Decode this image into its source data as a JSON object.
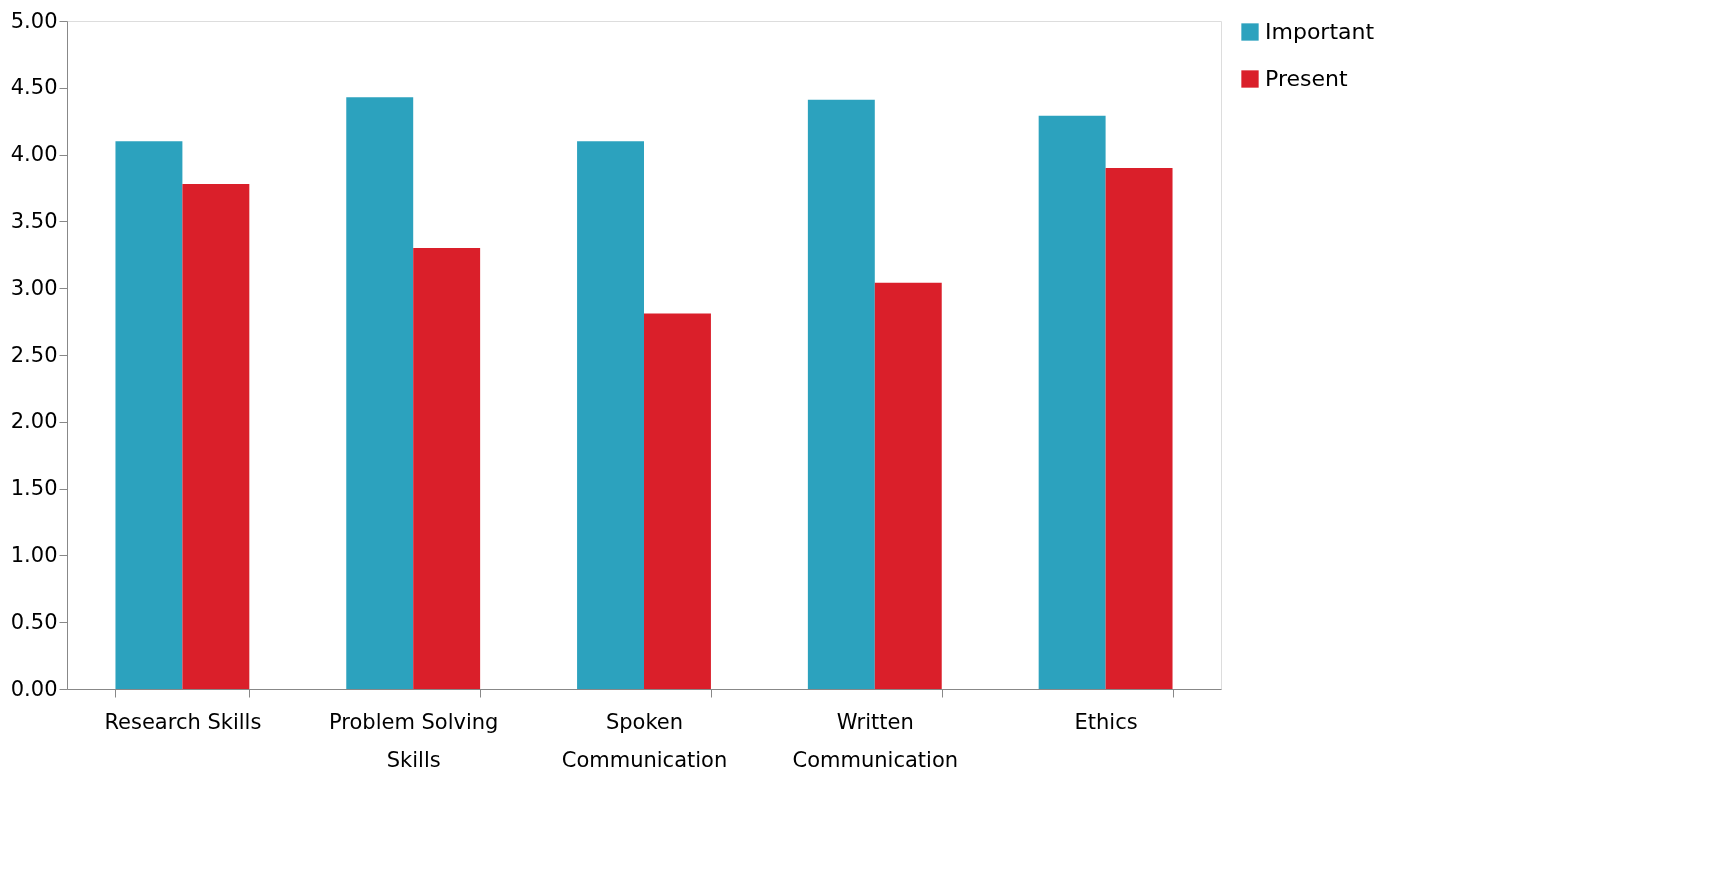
{
  "chart_data": {
    "type": "bar",
    "categories": [
      "Research Skills",
      "Problem Solving Skills",
      "Spoken Communication",
      "Written Communication",
      "Ethics"
    ],
    "series": [
      {
        "name": "Important",
        "color": "#2ca2be",
        "values": [
          4.1,
          4.43,
          4.1,
          4.41,
          4.29
        ]
      },
      {
        "name": "Present",
        "color": "#da1f2a",
        "values": [
          3.78,
          3.3,
          2.81,
          3.04,
          3.9
        ]
      }
    ],
    "ylim": [
      0,
      5
    ],
    "yticks": [
      {
        "value": 0,
        "label": "0.00"
      },
      {
        "value": 0.5,
        "label": "0.50"
      },
      {
        "value": 1,
        "label": "1.00"
      },
      {
        "value": 1.5,
        "label": "1.50"
      },
      {
        "value": 2,
        "label": "2.00"
      },
      {
        "value": 2.5,
        "label": "2.50"
      },
      {
        "value": 3,
        "label": "3.00"
      },
      {
        "value": 3.5,
        "label": "3.50"
      },
      {
        "value": 4,
        "label": "4.00"
      },
      {
        "value": 4.5,
        "label": "4.50"
      },
      {
        "value": 5,
        "label": "5.00"
      }
    ],
    "grid": false,
    "legend": "right"
  }
}
